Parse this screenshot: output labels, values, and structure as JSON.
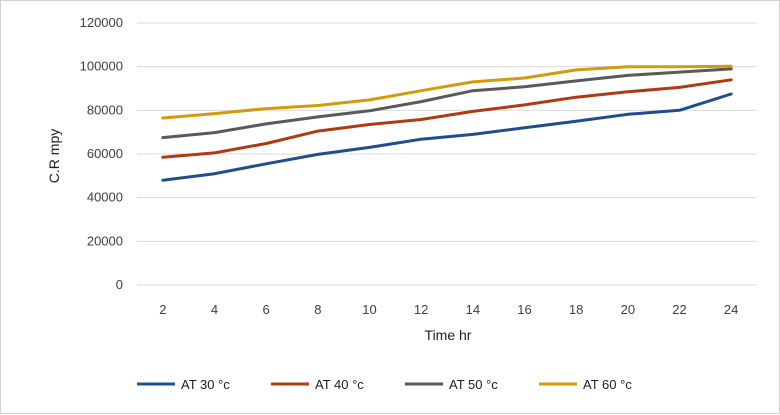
{
  "chart_data": {
    "type": "line",
    "title": "",
    "xlabel": "Time hr",
    "ylabel": "C.R mpy",
    "x": [
      2,
      4,
      6,
      8,
      10,
      12,
      14,
      16,
      18,
      20,
      22,
      24
    ],
    "ylim": [
      0,
      120000
    ],
    "yticks": [
      0,
      20000,
      40000,
      60000,
      80000,
      100000,
      120000
    ],
    "grid": true,
    "legend_position": "bottom",
    "series": [
      {
        "name": "AT 30 °c",
        "color": "#1f4e8c",
        "values": [
          48000,
          51000,
          55500,
          59800,
          63000,
          66800,
          69000,
          72000,
          75000,
          78200,
          80000,
          87500
        ]
      },
      {
        "name": "AT 40 °c",
        "color": "#b03a14",
        "values": [
          58500,
          60500,
          64800,
          70500,
          73500,
          75800,
          79500,
          82500,
          86000,
          88500,
          90500,
          94000
        ]
      },
      {
        "name": "AT 50 °c",
        "color": "#5a5a5a",
        "values": [
          67500,
          69800,
          73800,
          77000,
          79800,
          84000,
          89000,
          90800,
          93500,
          96000,
          97500,
          99000
        ]
      },
      {
        "name": "AT 60 °c",
        "color": "#d49a0a",
        "values": [
          76500,
          78500,
          80800,
          82200,
          84800,
          89000,
          93000,
          94800,
          98500,
          100000,
          100000,
          100200
        ]
      }
    ]
  }
}
